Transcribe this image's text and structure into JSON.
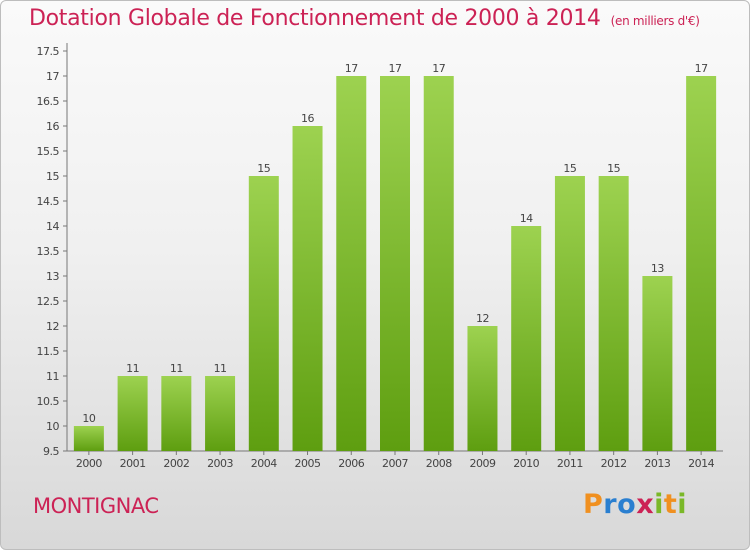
{
  "title": "Dotation Globale de Fonctionnement de 2000 à 2014",
  "subtitle": "(en milliers d'€)",
  "commune": "MONTIGNAC",
  "logo": {
    "letters": [
      "P",
      "r",
      "o",
      "x",
      "i",
      "t",
      "i"
    ],
    "colors": [
      "#f09020",
      "#2a7fd0",
      "#2a7fd0",
      "#cc2255",
      "#7ab828",
      "#f09020",
      "#7ab828"
    ]
  },
  "colors": {
    "title": "#cc2255",
    "bar_light": "#9dd250",
    "bar_dark": "#5e9e10"
  },
  "chart_data": {
    "type": "bar",
    "categories": [
      "2000",
      "2001",
      "2002",
      "2003",
      "2004",
      "2005",
      "2006",
      "2007",
      "2008",
      "2009",
      "2010",
      "2011",
      "2012",
      "2013",
      "2014"
    ],
    "values": [
      10,
      11,
      11,
      11,
      15,
      16,
      17,
      17,
      17,
      12,
      14,
      15,
      15,
      13,
      17
    ],
    "value_labels": [
      "10",
      "11",
      "11",
      "11",
      "15",
      "16",
      "17",
      "17",
      "17",
      "12",
      "14",
      "15",
      "15",
      "13",
      "17"
    ],
    "ylim": [
      9.5,
      17.5
    ],
    "yticks": [
      9.5,
      10,
      10.5,
      11,
      11.5,
      12,
      12.5,
      13,
      13.5,
      14,
      14.5,
      15,
      15.5,
      16,
      16.5,
      17,
      17.5
    ],
    "ytick_labels": [
      "9.5",
      "10",
      "10.5",
      "11",
      "11.5",
      "12",
      "12.5",
      "13",
      "13.5",
      "14",
      "14.5",
      "15",
      "15.5",
      "16",
      "16.5",
      "17",
      "17.5"
    ],
    "xlabel": "",
    "ylabel": "",
    "grid": false,
    "legend": "none"
  }
}
